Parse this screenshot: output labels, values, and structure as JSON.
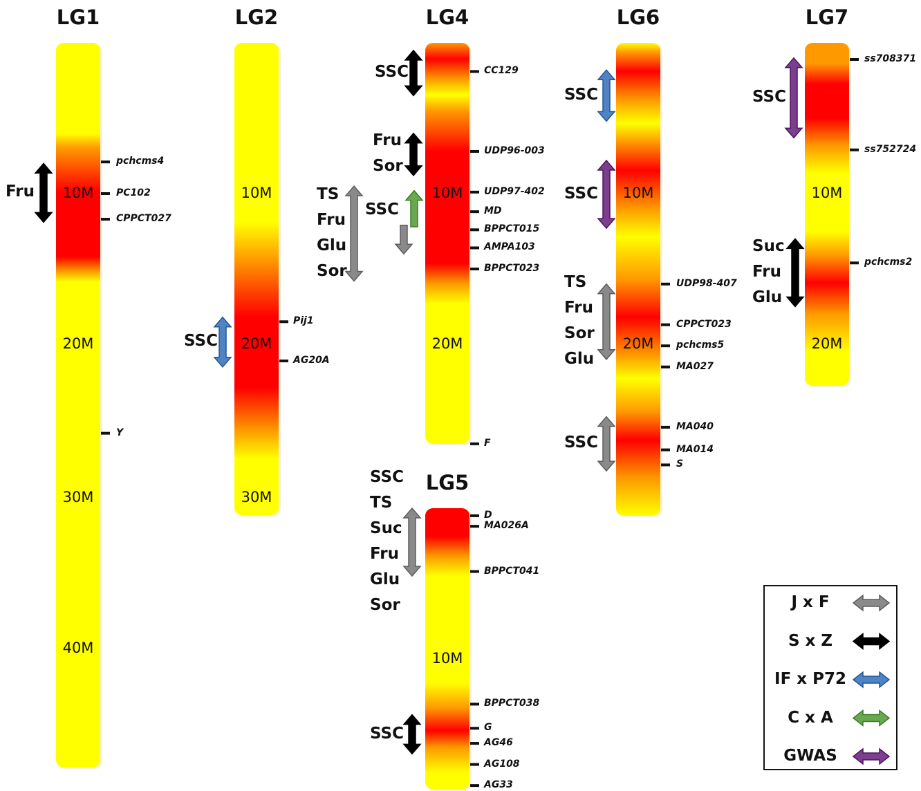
{
  "linkage_groups": [
    {
      "id": "LG1",
      "title": "LG1",
      "markers": [
        {
          "name": "pchcms4",
          "pos": 7.9
        },
        {
          "name": "PC102",
          "pos": 10.0
        },
        {
          "name": "CPPCT027",
          "pos": 11.7
        },
        {
          "name": "Y",
          "pos": 25.9
        }
      ],
      "mb_labels": [
        {
          "label": "10M",
          "pos": 10.0
        },
        {
          "label": "20M",
          "pos": 20.0
        },
        {
          "label": "30M",
          "pos": 30.2
        },
        {
          "label": "40M",
          "pos": 40.2
        }
      ],
      "qtls": [
        {
          "traits": [
            "Fru"
          ],
          "population": "S x Z",
          "start": 8.0,
          "end": 11.9
        }
      ]
    },
    {
      "id": "LG2",
      "title": "LG2",
      "markers": [
        {
          "name": "Pij1",
          "pos": 18.5
        },
        {
          "name": "AG20A",
          "pos": 21.1
        }
      ],
      "mb_labels": [
        {
          "label": "10M",
          "pos": 10.0
        },
        {
          "label": "20M",
          "pos": 20.0
        },
        {
          "label": "30M",
          "pos": 30.2
        }
      ],
      "qtls": [
        {
          "traits": [
            "SSC"
          ],
          "population": "IF x P72",
          "start": 18.2,
          "end": 21.5
        }
      ]
    },
    {
      "id": "LG4",
      "title": "LG4",
      "markers": [
        {
          "name": "CC129",
          "pos": 1.9
        },
        {
          "name": "UDP96-003",
          "pos": 7.2
        },
        {
          "name": "UDP97-402",
          "pos": 9.9
        },
        {
          "name": "MD",
          "pos": 11.2
        },
        {
          "name": "BPPCT015",
          "pos": 12.4
        },
        {
          "name": "AMPA103",
          "pos": 13.6
        },
        {
          "name": "BPPCT023",
          "pos": 15.0
        },
        {
          "name": "F",
          "pos": 26.6
        }
      ],
      "mb_labels": [
        {
          "label": "10M",
          "pos": 10.0
        },
        {
          "label": "20M",
          "pos": 20.0
        }
      ],
      "qtls": [
        {
          "traits": [
            "SSC"
          ],
          "population": "S x Z",
          "start": 0.5,
          "end": 3.5
        },
        {
          "traits": [
            "Fru",
            "Sor"
          ],
          "population": "S x Z",
          "start": 6.0,
          "end": 8.8
        },
        {
          "traits": [
            "TS",
            "Fru",
            "Glu",
            "Sor"
          ],
          "population": "J x F",
          "start": 9.5,
          "end": 15.8
        },
        {
          "traits": [
            "SSC"
          ],
          "population": "C x A",
          "start": 9.8,
          "end": 12.2
        },
        {
          "traits": [
            "SSC"
          ],
          "population": "J x F",
          "start": 12.1,
          "end": 14.0
        }
      ]
    },
    {
      "id": "LG5",
      "title": "LG5",
      "markers": [
        {
          "name": "D",
          "pos": 0.5
        },
        {
          "name": "MA026A",
          "pos": 1.2
        },
        {
          "name": "BPPCT041",
          "pos": 4.2
        },
        {
          "name": "BPPCT038",
          "pos": 13.0
        },
        {
          "name": "G",
          "pos": 14.6
        },
        {
          "name": "AG46",
          "pos": 15.6
        },
        {
          "name": "AG108",
          "pos": 17.0
        },
        {
          "name": "AG33",
          "pos": 18.4
        }
      ],
      "mb_labels": [
        {
          "label": "10M",
          "pos": 10.0
        }
      ],
      "qtls": [
        {
          "traits": [
            "SSC",
            "TS",
            "Suc",
            "Fru",
            "Glu",
            "Sor"
          ],
          "population": "J x F",
          "start": 0.0,
          "end": 4.5
        },
        {
          "traits": [
            "SSC"
          ],
          "population": "S x Z",
          "start": 13.7,
          "end": 16.3
        }
      ]
    },
    {
      "id": "LG6",
      "title": "LG6",
      "markers": [
        {
          "name": "UDP98-407",
          "pos": 16.0
        },
        {
          "name": "CPPCT023",
          "pos": 18.7
        },
        {
          "name": "pchcms5",
          "pos": 20.1
        },
        {
          "name": "MA027",
          "pos": 21.5
        },
        {
          "name": "MA040",
          "pos": 25.5
        },
        {
          "name": "MA014",
          "pos": 27.0
        },
        {
          "name": "S",
          "pos": 28.0
        }
      ],
      "mb_labels": [
        {
          "label": "10M",
          "pos": 10.0
        },
        {
          "label": "20M",
          "pos": 20.0
        }
      ],
      "qtls": [
        {
          "traits": [
            "SSC"
          ],
          "population": "IF x P72",
          "start": 1.8,
          "end": 5.2
        },
        {
          "traits": [
            "SSC"
          ],
          "population": "GWAS",
          "start": 7.8,
          "end": 12.3
        },
        {
          "traits": [
            "TS",
            "Fru",
            "Sor",
            "Glu"
          ],
          "population": "J x F",
          "start": 16.0,
          "end": 21.0
        },
        {
          "traits": [
            "SSC"
          ],
          "population": "J x F",
          "start": 24.8,
          "end": 28.4
        }
      ]
    },
    {
      "id": "LG7",
      "title": "LG7",
      "markers": [
        {
          "name": "ss708371",
          "pos": 1.1
        },
        {
          "name": "ss752724",
          "pos": 7.1
        },
        {
          "name": "pchcms2",
          "pos": 14.6
        }
      ],
      "mb_labels": [
        {
          "label": "10M",
          "pos": 10.0
        },
        {
          "label": "20M",
          "pos": 20.0
        }
      ],
      "qtls": [
        {
          "traits": [
            "SSC"
          ],
          "population": "GWAS",
          "start": 1.0,
          "end": 6.3
        },
        {
          "traits": [
            "Suc",
            "Fru",
            "Glu"
          ],
          "population": "S x Z",
          "start": 13.0,
          "end": 17.5
        }
      ]
    }
  ],
  "legend": [
    {
      "label": "J x F",
      "color": "#8a8a8a"
    },
    {
      "label": "S x Z",
      "color": "#000000"
    },
    {
      "label": "IF x P72",
      "color": "#4f83c4"
    },
    {
      "label": "C x A",
      "color": "#6aa84f"
    },
    {
      "label": "GWAS",
      "color": "#7b3f8e"
    }
  ],
  "colors": {
    "low": "#ffff00",
    "mid": "#ff9900",
    "high": "#ff0000"
  }
}
